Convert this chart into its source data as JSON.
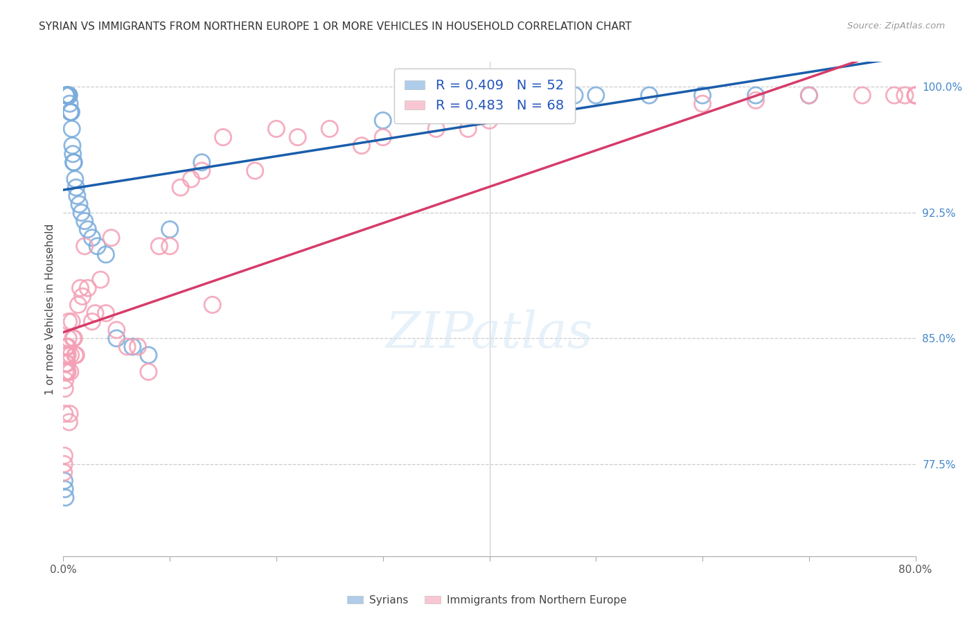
{
  "title": "SYRIAN VS IMMIGRANTS FROM NORTHERN EUROPE 1 OR MORE VEHICLES IN HOUSEHOLD CORRELATION CHART",
  "source": "Source: ZipAtlas.com",
  "ylabel": "1 or more Vehicles in Household",
  "y_ticks": [
    77.5,
    85.0,
    92.5,
    100.0
  ],
  "y_tick_labels": [
    "77.5%",
    "85.0%",
    "92.5%",
    "100.0%"
  ],
  "x_min": 0.0,
  "x_max": 80.0,
  "y_min": 72.0,
  "y_max": 101.5,
  "legend_blue_r": "R = 0.409",
  "legend_blue_n": "N = 52",
  "legend_pink_r": "R = 0.483",
  "legend_pink_n": "N = 68",
  "blue_color": "#7aacdc",
  "pink_color": "#f4a0b5",
  "blue_line_color": "#1a5dab",
  "pink_line_color": "#d63b6a",
  "syrians_label": "Syrians",
  "northern_europe_label": "Immigrants from Northern Europe",
  "blue_x": [
    0.1,
    0.15,
    0.2,
    0.25,
    0.28,
    0.3,
    0.32,
    0.35,
    0.38,
    0.4,
    0.42,
    0.45,
    0.48,
    0.5,
    0.55,
    0.6,
    0.65,
    0.7,
    0.75,
    0.8,
    0.85,
    0.9,
    0.95,
    1.0,
    1.1,
    1.2,
    1.3,
    1.5,
    1.7,
    2.0,
    2.3,
    2.7,
    3.2,
    4.0,
    5.0,
    6.5,
    8.0,
    10.0,
    13.0,
    30.0,
    35.0,
    38.0,
    40.0,
    42.0,
    44.0,
    46.0,
    48.0,
    50.0,
    55.0,
    60.0,
    65.0,
    70.0
  ],
  "blue_y": [
    76.5,
    76.0,
    75.5,
    99.5,
    99.5,
    99.5,
    99.5,
    99.5,
    99.5,
    99.5,
    99.5,
    99.5,
    99.5,
    99.5,
    99.5,
    99.0,
    98.5,
    98.5,
    98.5,
    97.5,
    96.5,
    96.0,
    95.5,
    95.5,
    94.5,
    94.0,
    93.5,
    93.0,
    92.5,
    92.0,
    91.5,
    91.0,
    90.5,
    90.0,
    85.0,
    84.5,
    84.0,
    91.5,
    95.5,
    98.0,
    98.5,
    99.0,
    99.2,
    99.5,
    99.5,
    99.5,
    99.5,
    99.5,
    99.5,
    99.5,
    99.5,
    99.5
  ],
  "pink_x": [
    0.05,
    0.08,
    0.1,
    0.12,
    0.15,
    0.18,
    0.2,
    0.22,
    0.25,
    0.28,
    0.3,
    0.32,
    0.35,
    0.38,
    0.4,
    0.42,
    0.45,
    0.48,
    0.5,
    0.55,
    0.6,
    0.65,
    0.7,
    0.8,
    0.9,
    1.0,
    1.1,
    1.2,
    1.4,
    1.6,
    1.8,
    2.0,
    2.3,
    2.7,
    3.0,
    3.5,
    4.0,
    4.5,
    5.0,
    6.0,
    7.0,
    8.0,
    9.0,
    10.0,
    11.0,
    12.0,
    13.0,
    14.0,
    15.0,
    18.0,
    20.0,
    22.0,
    25.0,
    28.0,
    30.0,
    35.0,
    38.0,
    40.0,
    60.0,
    65.0,
    70.0,
    75.0,
    78.0,
    79.0,
    80.0,
    80.0,
    80.0,
    80.0
  ],
  "pink_y": [
    77.0,
    77.5,
    78.0,
    80.5,
    82.0,
    82.5,
    83.0,
    83.5,
    84.0,
    84.0,
    84.5,
    84.5,
    83.0,
    83.5,
    83.0,
    84.0,
    84.5,
    85.0,
    86.0,
    80.0,
    80.5,
    83.0,
    84.0,
    86.0,
    85.0,
    85.0,
    84.0,
    84.0,
    87.0,
    88.0,
    87.5,
    90.5,
    88.0,
    86.0,
    86.5,
    88.5,
    86.5,
    91.0,
    85.5,
    84.5,
    84.5,
    83.0,
    90.5,
    90.5,
    94.0,
    94.5,
    95.0,
    87.0,
    97.0,
    95.0,
    97.5,
    97.0,
    97.5,
    96.5,
    97.0,
    97.5,
    97.5,
    98.0,
    99.0,
    99.2,
    99.5,
    99.5,
    99.5,
    99.5,
    99.5,
    99.5,
    99.5,
    99.5
  ]
}
